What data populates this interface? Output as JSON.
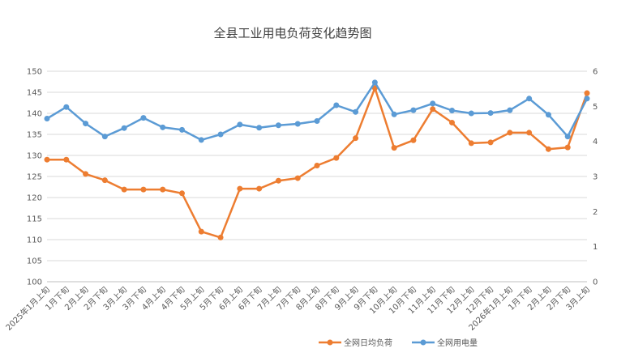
{
  "chart_data": {
    "type": "line",
    "title": "全县工业用电负荷变化趋势图",
    "categories": [
      "2025年1月上旬",
      "1月下旬",
      "2月上旬",
      "2月下旬",
      "3月上旬",
      "3月下旬",
      "4月上旬",
      "4月下旬",
      "5月上旬",
      "5月下旬",
      "6月上旬",
      "6月下旬",
      "7月上旬",
      "7月下旬",
      "8月上旬",
      "8月下旬",
      "9月上旬",
      "9月下旬",
      "10月上旬",
      "10月下旬",
      "11月上旬",
      "11月下旬",
      "12月上旬",
      "12月下旬",
      "2026年1月上旬",
      "1月下旬",
      "2月上旬",
      "2月下旬",
      "3月上旬"
    ],
    "y_left": {
      "ylim": [
        100,
        150
      ],
      "ticks": [
        "100",
        "105",
        "110",
        "115",
        "120",
        "125",
        "130",
        "135",
        "140",
        "145",
        "150"
      ]
    },
    "y_right": {
      "ylim": [
        0,
        6
      ],
      "ticks": [
        "0",
        "1",
        "2",
        "3",
        "4",
        "5",
        "6"
      ]
    },
    "series": [
      {
        "name": "全网日均负荷",
        "axis": "left",
        "color": "#ED7D31",
        "values": [
          129.0,
          129.0,
          125.6,
          124.1,
          121.9,
          121.9,
          121.9,
          121.0,
          111.9,
          110.5,
          122.1,
          122.1,
          124.0,
          124.6,
          127.6,
          129.4,
          134.1,
          146.0,
          131.8,
          133.6,
          141.0,
          137.8,
          132.9,
          133.1,
          135.4,
          135.4,
          131.5,
          131.9,
          144.8
        ]
      },
      {
        "name": "全网用电量",
        "axis": "right",
        "color": "#5B9BD5",
        "values": [
          4.65,
          4.98,
          4.51,
          4.14,
          4.38,
          4.67,
          4.4,
          4.33,
          4.04,
          4.2,
          4.48,
          4.39,
          4.46,
          4.5,
          4.58,
          5.03,
          4.84,
          5.68,
          4.77,
          4.89,
          5.08,
          4.88,
          4.8,
          4.81,
          4.89,
          5.22,
          4.76,
          4.14,
          5.22
        ]
      }
    ],
    "grid": true,
    "legend_position": "bottom-right"
  }
}
